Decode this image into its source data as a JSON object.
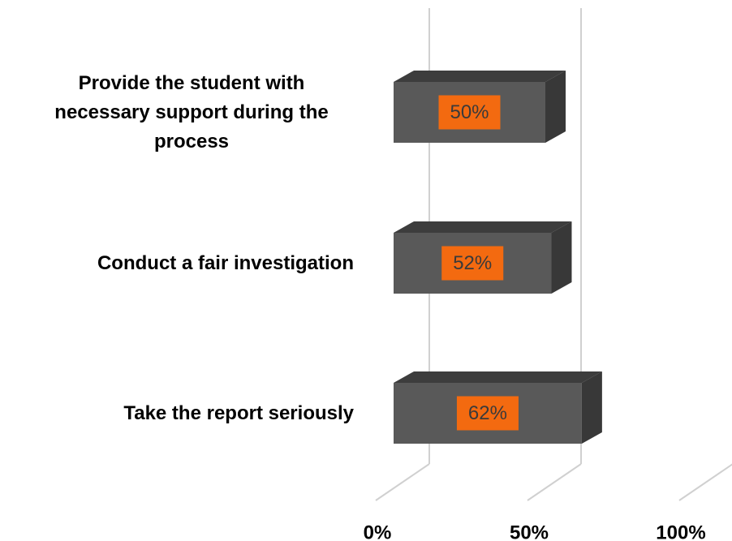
{
  "chart_data": {
    "type": "bar3d_horizontal",
    "categories": [
      "Provide the student with necessary support during the process",
      "Conduct a fair investigation",
      "Take the report seriously"
    ],
    "values": [
      50,
      52,
      62
    ],
    "value_labels": [
      "50%",
      "52%",
      "62%"
    ],
    "color": "#595959",
    "label_box_color": "#f36a10",
    "xlim": [
      0,
      100
    ],
    "xticks": [
      {
        "value": 0,
        "label": "0%"
      },
      {
        "value": 50,
        "label": "50%"
      },
      {
        "value": 100,
        "label": "100%"
      }
    ],
    "grid": true
  }
}
